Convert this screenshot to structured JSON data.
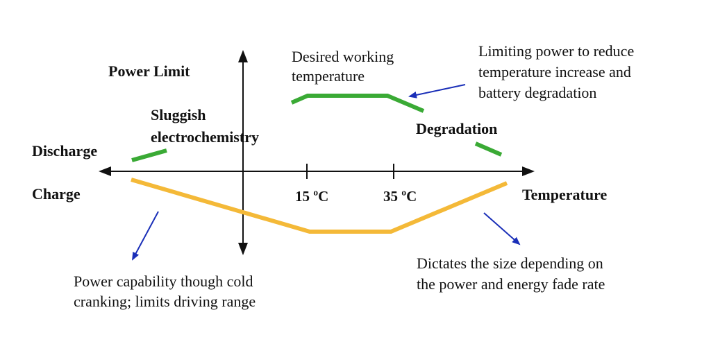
{
  "labels": {
    "power_limit": "Power Limit",
    "discharge": "Discharge",
    "charge": "Charge",
    "temperature": "Temperature",
    "tick_15": "15 ºC",
    "tick_35": "35 ºC",
    "sluggish_line1": "Sluggish",
    "sluggish_line2": "electrochemistry",
    "degradation": "Degradation"
  },
  "annotations": {
    "desired_line1": "Desired working",
    "desired_line2": "temperature",
    "limiting_line1": "Limiting power to reduce",
    "limiting_line2": "temperature increase and",
    "limiting_line3": "battery degradation",
    "cold_line1": "Power capability though cold",
    "cold_line2": "cranking; limits driving range",
    "dictates_line1": "Dictates the size depending on",
    "dictates_line2": "the power and energy fade rate"
  },
  "colors": {
    "discharge_curve": "#3aaa35",
    "charge_curve": "#f4b938",
    "axes": "#111111",
    "pointer_arrows": "#1a2fb8"
  }
}
